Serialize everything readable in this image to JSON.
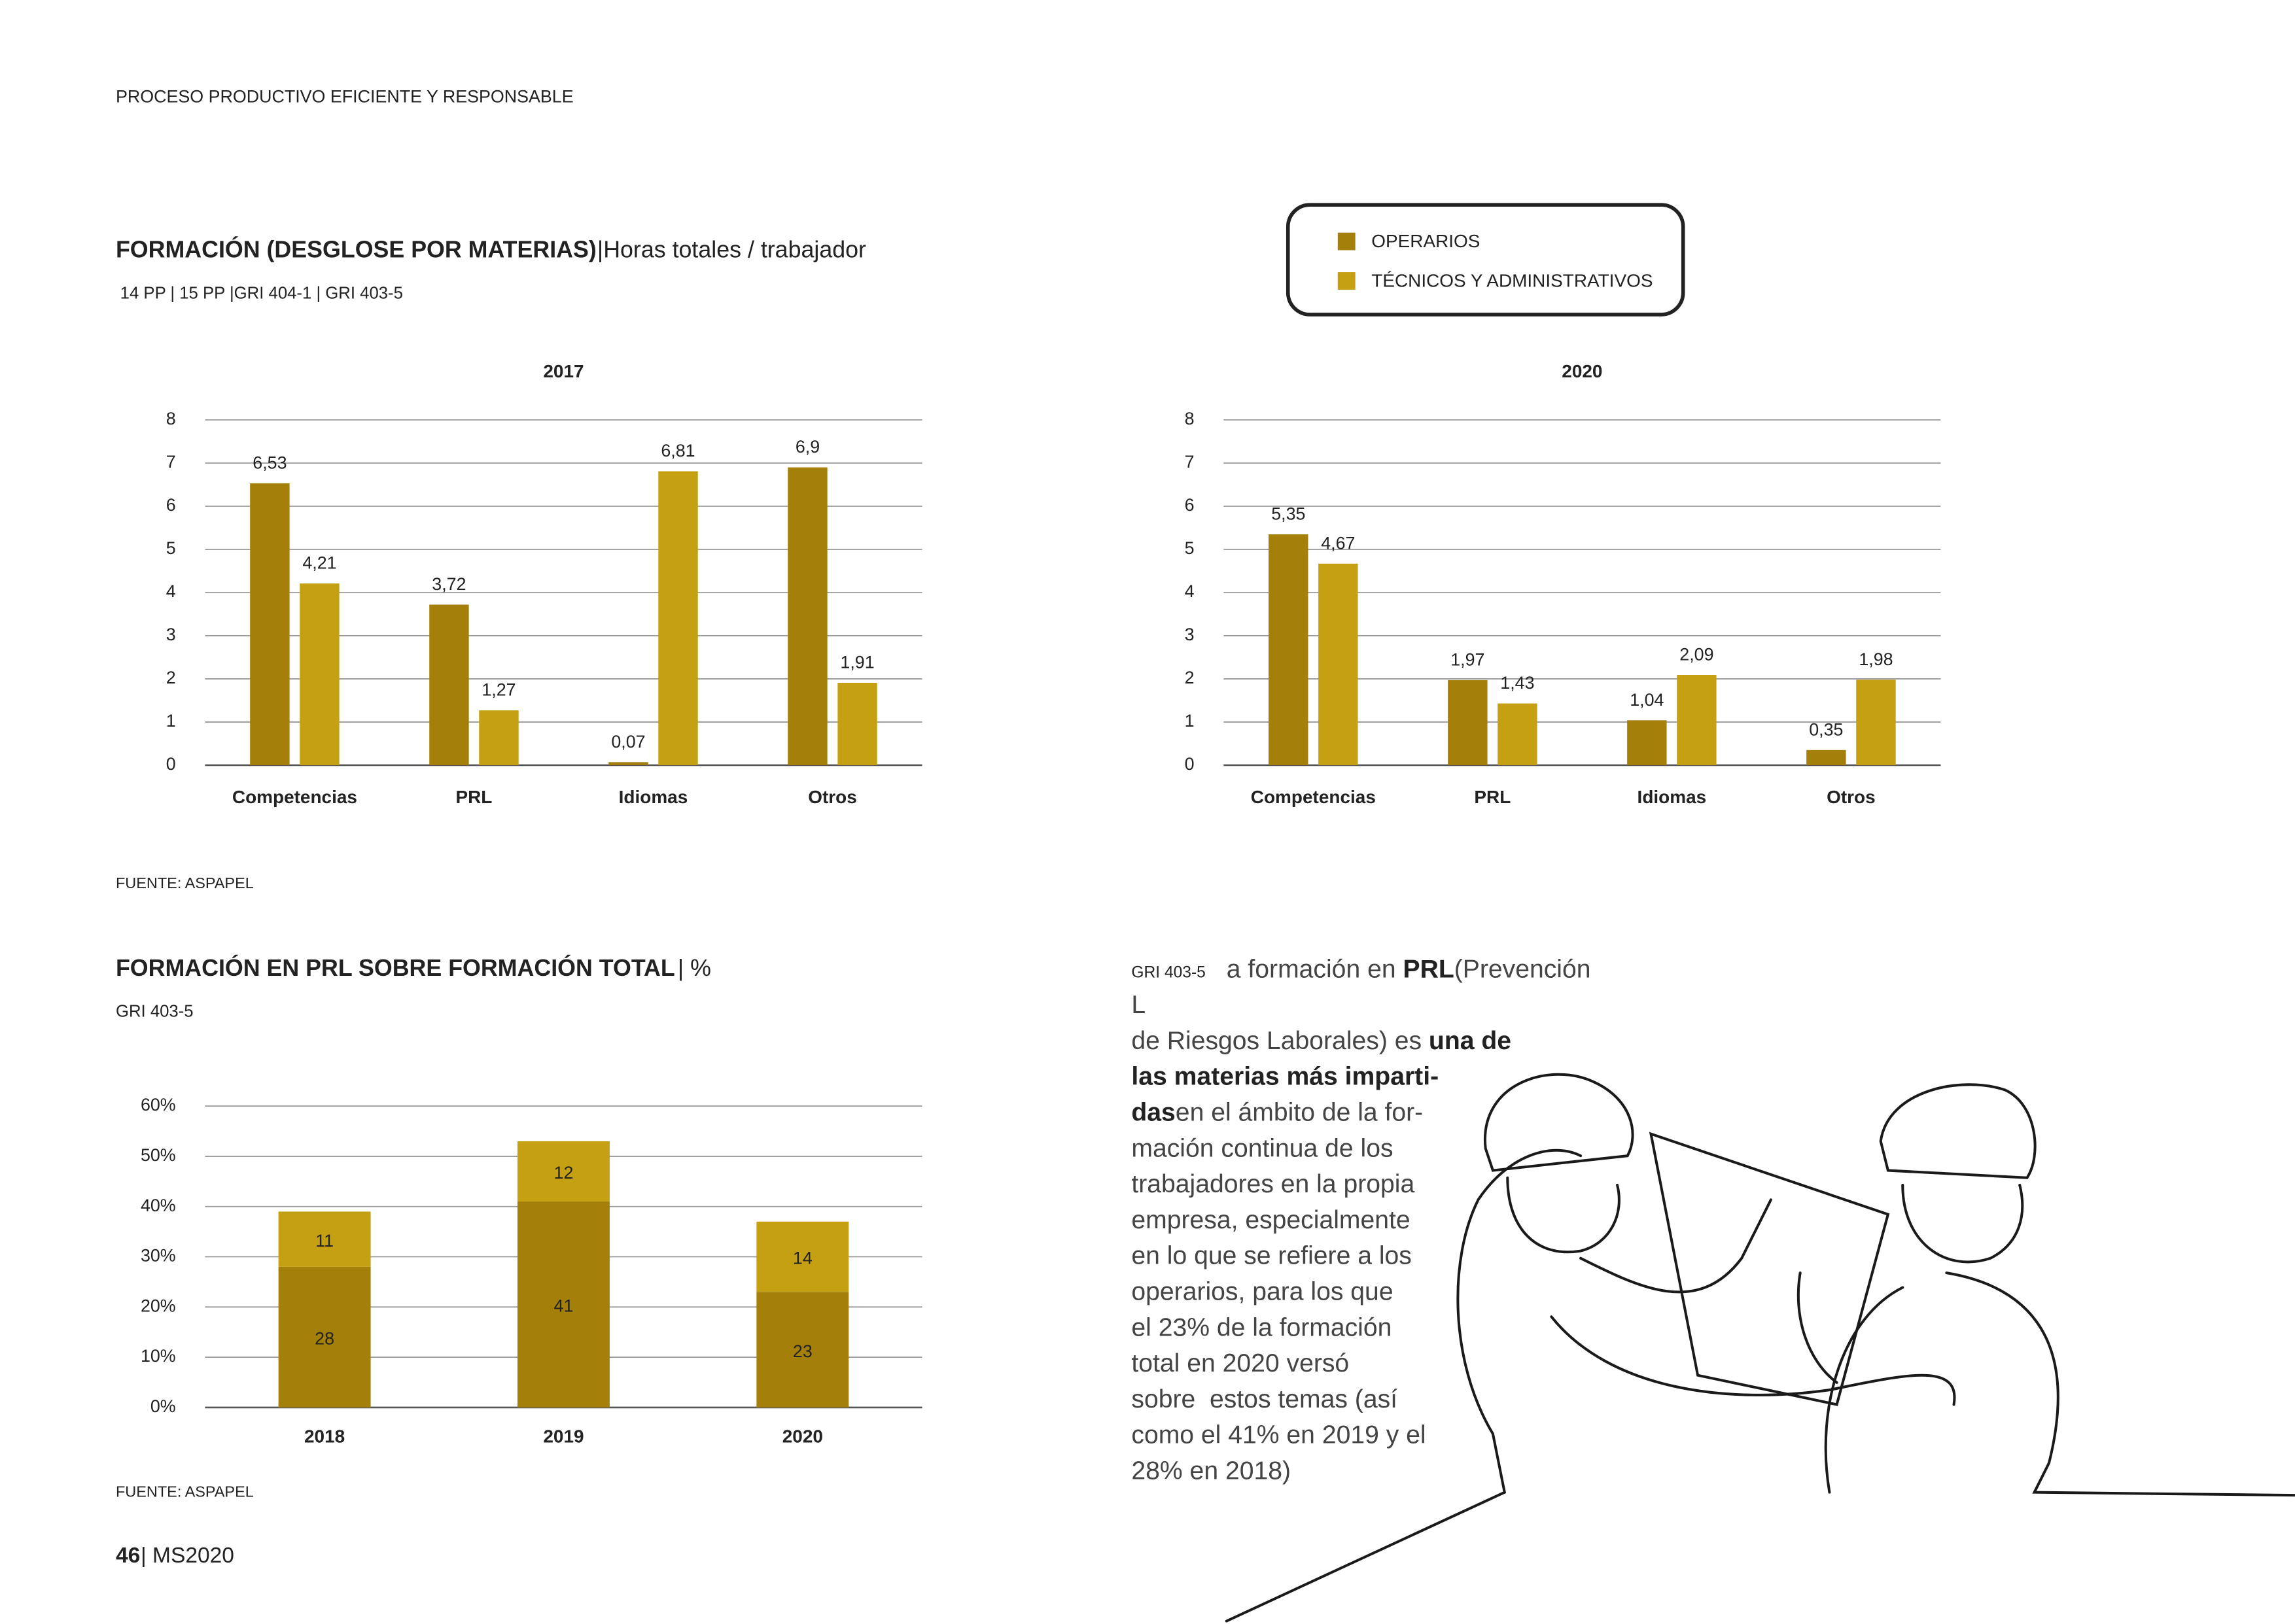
{
  "header": "PROCESO PRODUCTIVO EFICIENTE Y RESPONSABLE",
  "chart_data": [
    {
      "type": "bar",
      "title": "FORMACIÓN (DESGLOSE POR MATERIAS)",
      "title_suffix": "|Horas totales / trabajador",
      "subtitle": "14 PP | 15 PP |GRI 404-1 | GRI 403-5",
      "panel_title": "2017",
      "categories": [
        "Competencias",
        "PRL",
        "Idiomas",
        "Otros"
      ],
      "series": [
        {
          "name": "OPERARIOS",
          "color": "#a47f0a",
          "values": [
            6.53,
            3.72,
            0.07,
            6.9
          ],
          "value_labels": [
            "6,53",
            "3,72",
            "0,07",
            "6,9"
          ]
        },
        {
          "name": "TÉCNICOS Y ADMINISTRATIVOS",
          "color": "#c5a013",
          "values": [
            4.21,
            1.27,
            6.81,
            1.91
          ],
          "value_labels": [
            "4,21",
            "1,27",
            "6,81",
            "1,91"
          ]
        }
      ],
      "ylim": [
        0,
        8
      ],
      "yticks": [
        0,
        1,
        2,
        3,
        4,
        5,
        6,
        7,
        8
      ],
      "grid": true,
      "source": "FUENTE: ASPAPEL"
    },
    {
      "type": "bar",
      "panel_title": "2020",
      "categories": [
        "Competencias",
        "PRL",
        "Idiomas",
        "Otros"
      ],
      "series": [
        {
          "color": "#a47f0a",
          "values": [
            5.35,
            1.97,
            1.04,
            0.35
          ],
          "value_labels": [
            "5,35",
            "1,97",
            "1,04",
            "0,35"
          ]
        },
        {
          "color": "#c5a013",
          "values": [
            4.67,
            1.43,
            2.09,
            1.98
          ],
          "value_labels": [
            "4,67",
            "1,43",
            "2,09",
            "1,98"
          ]
        }
      ],
      "ylim": [
        0,
        8
      ],
      "yticks": [
        0,
        1,
        2,
        3,
        4,
        5,
        6,
        7,
        8
      ],
      "grid": true
    },
    {
      "type": "stacked_bar",
      "title": "FORMACIÓN EN PRL SOBRE FORMACIÓN TOTAL",
      "title_suffix": "| %",
      "subtitle": "GRI 403-5",
      "categories": [
        "2018",
        "2019",
        "2020"
      ],
      "series": [
        {
          "color": "#a47f0a",
          "values": [
            28,
            41,
            23
          ]
        },
        {
          "color": "#c5a013",
          "values": [
            11,
            12,
            14
          ]
        }
      ],
      "ylim": [
        0,
        60
      ],
      "yticks": [
        {
          "value": 0,
          "label": "0%"
        },
        {
          "value": 10,
          "label": "10%"
        },
        {
          "value": 20,
          "label": "20%"
        },
        {
          "value": 30,
          "label": "30%"
        },
        {
          "value": 40,
          "label": "40%"
        },
        {
          "value": 50,
          "label": "50%"
        },
        {
          "value": 60,
          "label": "60%"
        }
      ],
      "grid": true,
      "source": "FUENTE: ASPAPEL"
    }
  ],
  "text_block": {
    "label": "GRI 403-5",
    "lines": [
      [
        {
          "t": "a formación en ",
          "b": false
        },
        {
          "t": "PRL",
          "b": true
        },
        {
          "t": "(Prevención",
          "b": false
        }
      ],
      [
        {
          "t": "L",
          "b": false
        }
      ],
      [
        {
          "t": "de Riesgos Laborales) es ",
          "b": false
        },
        {
          "t": "una de",
          "b": true
        }
      ],
      [
        {
          "t": "las materias más imparti-",
          "b": true
        }
      ],
      [
        {
          "t": "das",
          "b": true
        },
        {
          "t": "en el ámbito de la for-",
          "b": false
        }
      ],
      [
        {
          "t": "mación continua de los",
          "b": false
        }
      ],
      [
        {
          "t": "trabajadores en la propia",
          "b": false
        }
      ],
      [
        {
          "t": "empresa, especialmente",
          "b": false
        }
      ],
      [
        {
          "t": "en lo que se refiere a los",
          "b": false
        }
      ],
      [
        {
          "t": "operarios, para los que",
          "b": false
        }
      ],
      [
        {
          "t": "el 23% de la formación",
          "b": false
        }
      ],
      [
        {
          "t": "total en 2020 versó",
          "b": false
        }
      ],
      [
        {
          "t": "sobre  estos temas (así",
          "b": false
        }
      ],
      [
        {
          "t": "como el 41% en 2019 y el",
          "b": false
        }
      ],
      [
        {
          "t": "28% en 2018)",
          "b": false
        }
      ]
    ]
  },
  "footer": {
    "page": "46",
    "label": "| MS2020"
  }
}
